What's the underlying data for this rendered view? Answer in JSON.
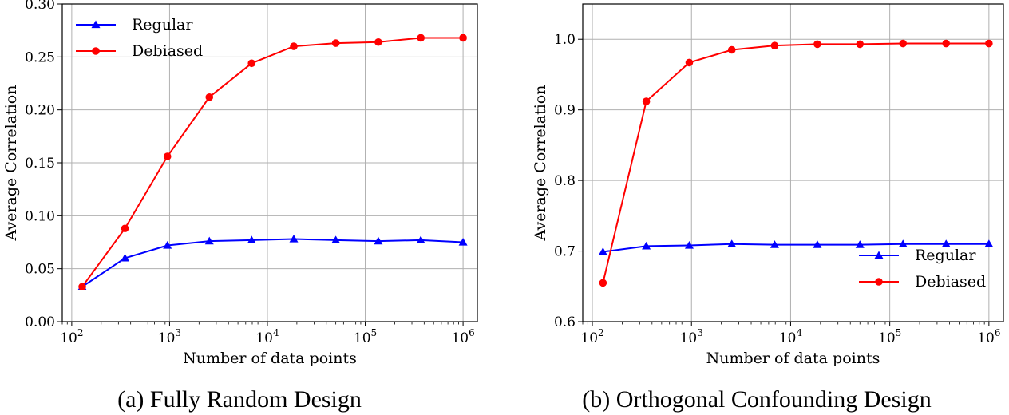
{
  "chart_data": [
    {
      "type": "line",
      "caption": "(a) Fully Random Design",
      "xlabel": "Number of data points",
      "ylabel": "Average Correlation",
      "xscale": "log",
      "xlim": [
        80,
        1400000
      ],
      "ylim": [
        0.0,
        0.3
      ],
      "xticks": [
        {
          "value": 100,
          "base": "10",
          "exp": "2"
        },
        {
          "value": 1000,
          "base": "10",
          "exp": "3"
        },
        {
          "value": 10000,
          "base": "10",
          "exp": "4"
        },
        {
          "value": 100000,
          "base": "10",
          "exp": "5"
        },
        {
          "value": 1000000,
          "base": "10",
          "exp": "6"
        }
      ],
      "yticks": [
        {
          "value": 0.0,
          "label": "0.00"
        },
        {
          "value": 0.05,
          "label": "0.05"
        },
        {
          "value": 0.1,
          "label": "0.10"
        },
        {
          "value": 0.15,
          "label": "0.15"
        },
        {
          "value": 0.2,
          "label": "0.20"
        },
        {
          "value": 0.25,
          "label": "0.25"
        },
        {
          "value": 0.3,
          "label": "0.30"
        }
      ],
      "grid": true,
      "legend_position": "top-left",
      "x": [
        128,
        350,
        950,
        2550,
        6900,
        18600,
        50000,
        136000,
        370000,
        1000000
      ],
      "series": [
        {
          "name": "Regular",
          "color": "#0000ff",
          "marker": "triangle",
          "values": [
            0.033,
            0.06,
            0.072,
            0.076,
            0.077,
            0.078,
            0.077,
            0.076,
            0.077,
            0.075
          ]
        },
        {
          "name": "Debiased",
          "color": "#ff0000",
          "marker": "circle",
          "values": [
            0.033,
            0.088,
            0.156,
            0.212,
            0.244,
            0.26,
            0.263,
            0.264,
            0.268,
            0.268
          ]
        }
      ]
    },
    {
      "type": "line",
      "caption": "(b) Orthogonal Confounding Design",
      "xlabel": "Number of data points",
      "ylabel": "Average Correlation",
      "xscale": "log",
      "xlim": [
        80,
        1400000
      ],
      "ylim": [
        0.6,
        1.05
      ],
      "xticks": [
        {
          "value": 100,
          "base": "10",
          "exp": "2"
        },
        {
          "value": 1000,
          "base": "10",
          "exp": "3"
        },
        {
          "value": 10000,
          "base": "10",
          "exp": "4"
        },
        {
          "value": 100000,
          "base": "10",
          "exp": "5"
        },
        {
          "value": 1000000,
          "base": "10",
          "exp": "6"
        }
      ],
      "yticks": [
        {
          "value": 0.6,
          "label": "0.6"
        },
        {
          "value": 0.7,
          "label": "0.7"
        },
        {
          "value": 0.8,
          "label": "0.8"
        },
        {
          "value": 0.9,
          "label": "0.9"
        },
        {
          "value": 1.0,
          "label": "1.0"
        }
      ],
      "grid": true,
      "legend_position": "bottom-right",
      "x": [
        128,
        350,
        950,
        2550,
        6900,
        18600,
        50000,
        136000,
        370000,
        1000000
      ],
      "series": [
        {
          "name": "Regular",
          "color": "#0000ff",
          "marker": "triangle",
          "values": [
            0.699,
            0.707,
            0.708,
            0.71,
            0.709,
            0.709,
            0.709,
            0.71,
            0.71,
            0.71
          ]
        },
        {
          "name": "Debiased",
          "color": "#ff0000",
          "marker": "circle",
          "values": [
            0.655,
            0.912,
            0.967,
            0.985,
            0.991,
            0.993,
            0.993,
            0.994,
            0.994,
            0.994
          ]
        }
      ]
    }
  ]
}
